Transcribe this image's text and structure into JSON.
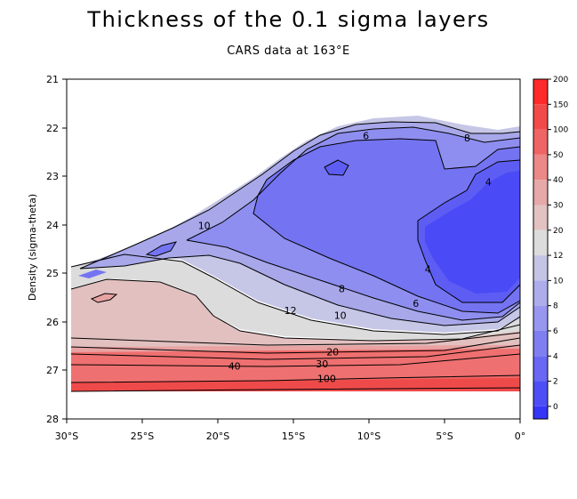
{
  "chart_data": {
    "type": "heatmap",
    "title": "Thickness of the 0.1 sigma layers",
    "subtitle": "CARS data at 163°E",
    "ylabel": "Density (sigma-theta)",
    "xlabel": "",
    "x_ticks": [
      "30°S",
      "25°S",
      "20°S",
      "15°S",
      "10°S",
      "5°S",
      "0°"
    ],
    "x_range": [
      -30,
      0
    ],
    "y_ticks": [
      "21",
      "22",
      "23",
      "24",
      "25",
      "26",
      "27",
      "28"
    ],
    "y_range": [
      21,
      28
    ],
    "colorbar_levels": [
      "200",
      "150",
      "100",
      "50",
      "40",
      "30",
      "20",
      "12",
      "10",
      "8",
      "6",
      "4",
      "2",
      "0"
    ],
    "colorbar_colors": [
      "#ff2a2a",
      "#f24a4a",
      "#ef6464",
      "#eb8888",
      "#e6a8a8",
      "#e3c2c2",
      "#dcdcdc",
      "#c4c4e4",
      "#adadec",
      "#9797f0",
      "#7f7ff2",
      "#6868f4",
      "#4e4ef6",
      "#3636f8"
    ],
    "contour_labels": [
      {
        "text": "6",
        "x": -10.2,
        "y": 22.2
      },
      {
        "text": "8",
        "x": -3.5,
        "y": 22.25
      },
      {
        "text": "4",
        "x": -2.1,
        "y": 23.15
      },
      {
        "text": "10",
        "x": -20.9,
        "y": 24.05
      },
      {
        "text": "4",
        "x": -6.1,
        "y": 24.95
      },
      {
        "text": "8",
        "x": -11.8,
        "y": 25.35
      },
      {
        "text": "6",
        "x": -6.9,
        "y": 25.65
      },
      {
        "text": "12",
        "x": -15.2,
        "y": 25.8
      },
      {
        "text": "10",
        "x": -11.9,
        "y": 25.9
      },
      {
        "text": "20",
        "x": -12.4,
        "y": 26.65
      },
      {
        "text": "30",
        "x": -13.1,
        "y": 26.9
      },
      {
        "text": "40",
        "x": -18.9,
        "y": 26.95
      },
      {
        "text": "100",
        "x": -12.8,
        "y": 27.2
      }
    ]
  }
}
